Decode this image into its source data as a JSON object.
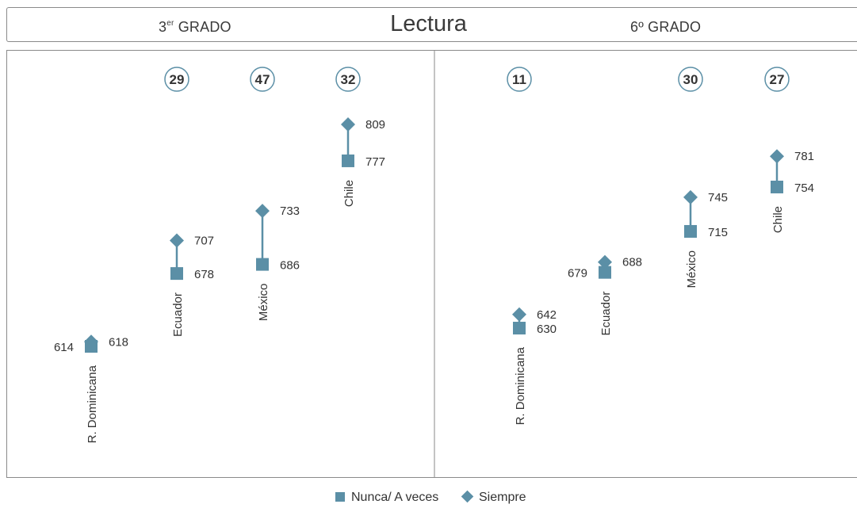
{
  "colors": {
    "marker": "#5b8fa6",
    "text": "#333333",
    "border": "#8a8a8a"
  },
  "header": {
    "title": "Lectura",
    "grade_left": "GRADO",
    "grade_left_num": "3",
    "grade_left_sup": "er",
    "grade_right": "6º GRADO"
  },
  "legend": {
    "square_label": "Nunca/ A veces",
    "diamond_label": "Siempre"
  },
  "chart_data": [
    {
      "type": "dot",
      "panel": "3er GRADO",
      "ylim": [
        560,
        860
      ],
      "series": [
        {
          "name": "Nunca/ A veces",
          "marker": "square",
          "values": [
            614,
            678,
            686,
            777
          ]
        },
        {
          "name": "Siempre",
          "marker": "diamond",
          "values": [
            618,
            707,
            733,
            809
          ]
        }
      ],
      "categories": [
        "R. Dominicana",
        "Ecuador",
        "México",
        "Chile"
      ],
      "differences": [
        "",
        "29",
        "47",
        "32"
      ],
      "point_labels": [
        {
          "square": "614",
          "diamond": "618"
        },
        {
          "square": "678",
          "diamond": "707"
        },
        {
          "square": "686",
          "diamond": "733"
        },
        {
          "square": "777",
          "diamond": "809"
        }
      ]
    },
    {
      "type": "dot",
      "panel": "6º GRADO",
      "ylim": [
        560,
        860
      ],
      "series": [
        {
          "name": "Nunca/ A veces",
          "marker": "square",
          "values": [
            630,
            679,
            715,
            754
          ]
        },
        {
          "name": "Siempre",
          "marker": "diamond",
          "values": [
            642,
            688,
            745,
            781
          ]
        }
      ],
      "categories": [
        "R. Dominicana",
        "Ecuador",
        "México",
        "Chile"
      ],
      "differences": [
        "11",
        "",
        "30",
        "27"
      ],
      "point_labels": [
        {
          "square": "630",
          "diamond": "642"
        },
        {
          "square": "679",
          "diamond": "688"
        },
        {
          "square": "715",
          "diamond": "745"
        },
        {
          "square": "754",
          "diamond": "781"
        }
      ]
    }
  ]
}
